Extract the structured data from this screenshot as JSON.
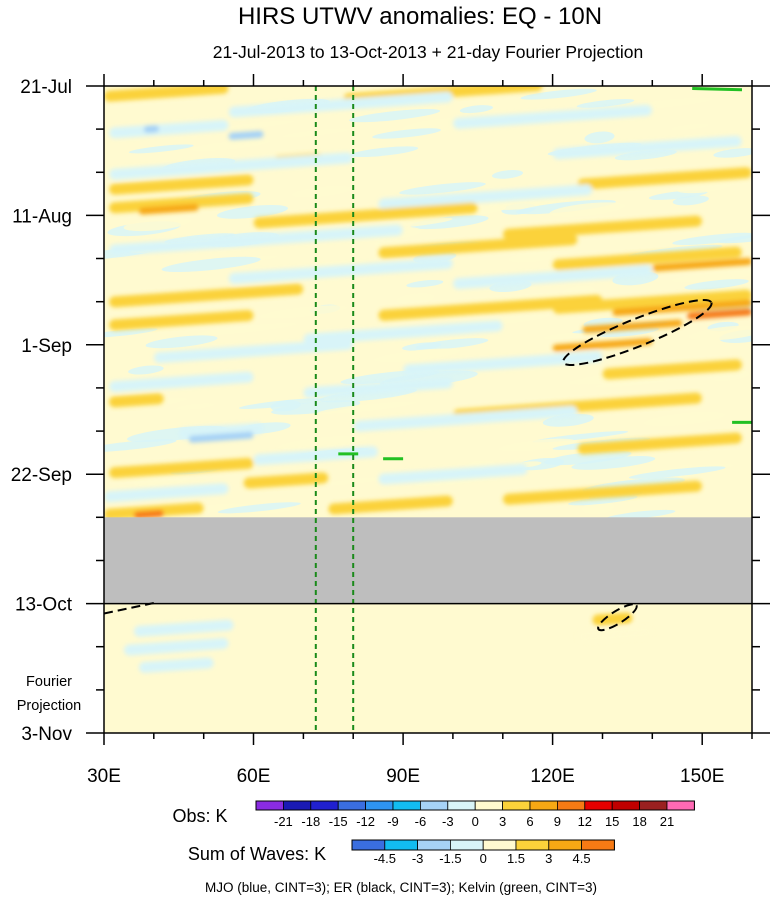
{
  "chart_data": {
    "type": "heatmap",
    "title": "HIRS UTWV anomalies: EQ - 10N",
    "subtitle": "21-Jul-2013 to 13-Oct-2013 + 21-day Fourier Projection",
    "x_axis": {
      "range": [
        30,
        160
      ],
      "units": "degrees East longitude",
      "ticks": [
        {
          "value": 30,
          "label": "30E"
        },
        {
          "value": 60,
          "label": "60E"
        },
        {
          "value": 90,
          "label": "90E"
        },
        {
          "value": 120,
          "label": "120E"
        },
        {
          "value": 150,
          "label": "150E"
        }
      ],
      "minor_step": 10
    },
    "y_axis": {
      "range_days": [
        0,
        105
      ],
      "direction": "time increases downward; day 0 = 21-Jul-2013",
      "ticks": [
        {
          "day": 0,
          "label": "21-Jul"
        },
        {
          "day": 21,
          "label": "11-Aug"
        },
        {
          "day": 42,
          "label": "1-Sep"
        },
        {
          "day": 63,
          "label": "22-Sep"
        },
        {
          "day": 84,
          "label": "13-Oct"
        },
        {
          "day": 105,
          "label": "3-Nov"
        }
      ],
      "minor_step_days": 7
    },
    "projection_label": [
      "Fourier",
      "Projection"
    ],
    "obs_end_day": 84,
    "missing_data_days": [
      70,
      84
    ],
    "missing_color": "#bebebe",
    "reference_lines": [
      {
        "lon": 72.5,
        "style": "dashed",
        "color": "#1a8a1a"
      },
      {
        "lon": 80,
        "style": "dashed",
        "color": "#1a8a1a"
      }
    ],
    "obs_legend": {
      "label": "Obs: K",
      "levels": [
        "-21",
        "-18",
        "-15",
        "-12",
        "-9",
        "-6",
        "-3",
        "0",
        "3",
        "6",
        "9",
        "12",
        "15",
        "18",
        "21"
      ],
      "colors": [
        "#8a2be2",
        "#1a1ab4",
        "#2020d0",
        "#3a6ee0",
        "#2e94f0",
        "#12bcf0",
        "#a6d2f6",
        "#d8f4f8",
        "#fffad0",
        "#fbd23a",
        "#f7a814",
        "#f77a14",
        "#e60000",
        "#c00000",
        "#9a2020",
        "#ff69b4"
      ]
    },
    "waves_legend": {
      "label": "Sum of Waves: K",
      "levels": [
        "-4.5",
        "-3",
        "-1.5",
        "0",
        "1.5",
        "3",
        "4.5"
      ],
      "colors": [
        "#3a6ee0",
        "#12bcf0",
        "#a6d2f6",
        "#d8f4f8",
        "#fffad0",
        "#fbd23a",
        "#f7a814",
        "#f77a14"
      ]
    },
    "footnote": "MJO (blue, CINT=3); ER (black, CINT=3); Kelvin (green, CINT=3)",
    "bands": [
      {
        "day": 1,
        "lon_from": 30,
        "lon_to": 55,
        "value": 3
      },
      {
        "day": 1,
        "lon_from": 78,
        "lon_to": 118,
        "value": 3
      },
      {
        "day": 3,
        "lon_from": 55,
        "lon_to": 100,
        "value": -3
      },
      {
        "day": 5,
        "lon_from": 100,
        "lon_to": 140,
        "value": -3
      },
      {
        "day": 7,
        "lon_from": 31,
        "lon_to": 55,
        "value": -3
      },
      {
        "day": 7,
        "lon_from": 38,
        "lon_to": 41,
        "value": -6
      },
      {
        "day": 8,
        "lon_from": 55,
        "lon_to": 62,
        "value": -6
      },
      {
        "day": 10,
        "lon_from": 120,
        "lon_to": 158,
        "value": -3
      },
      {
        "day": 12,
        "lon_from": 64,
        "lon_to": 74,
        "value": 3
      },
      {
        "day": 13,
        "lon_from": 31,
        "lon_to": 80,
        "value": -3
      },
      {
        "day": 15,
        "lon_from": 125,
        "lon_to": 160,
        "value": 3
      },
      {
        "day": 16,
        "lon_from": 31,
        "lon_to": 60,
        "value": 3
      },
      {
        "day": 18,
        "lon_from": 85,
        "lon_to": 128,
        "value": -3
      },
      {
        "day": 19,
        "lon_from": 31,
        "lon_to": 60,
        "value": 3
      },
      {
        "day": 20,
        "lon_from": 37,
        "lon_to": 49,
        "value": 6
      },
      {
        "day": 21,
        "lon_from": 60,
        "lon_to": 105,
        "value": 3
      },
      {
        "day": 23,
        "lon_from": 110,
        "lon_to": 150,
        "value": 3
      },
      {
        "day": 25,
        "lon_from": 31,
        "lon_to": 90,
        "value": -3
      },
      {
        "day": 26,
        "lon_from": 85,
        "lon_to": 125,
        "value": 3
      },
      {
        "day": 28,
        "lon_from": 120,
        "lon_to": 158,
        "value": 3
      },
      {
        "day": 29,
        "lon_from": 140,
        "lon_to": 160,
        "value": 6
      },
      {
        "day": 30,
        "lon_from": 55,
        "lon_to": 100,
        "value": -3
      },
      {
        "day": 31,
        "lon_from": 100,
        "lon_to": 140,
        "value": -3
      },
      {
        "day": 34,
        "lon_from": 31,
        "lon_to": 70,
        "value": 3
      },
      {
        "day": 35,
        "lon_from": 120,
        "lon_to": 160,
        "value": 3
      },
      {
        "day": 36,
        "lon_from": 85,
        "lon_to": 130,
        "value": 3
      },
      {
        "day": 36,
        "lon_from": 132,
        "lon_to": 160,
        "value": 6
      },
      {
        "day": 37,
        "lon_from": 147,
        "lon_to": 160,
        "value": 9
      },
      {
        "day": 38,
        "lon_from": 31,
        "lon_to": 60,
        "value": 3
      },
      {
        "day": 39,
        "lon_from": 126,
        "lon_to": 146,
        "value": 6
      },
      {
        "day": 40,
        "lon_from": 70,
        "lon_to": 110,
        "value": -3
      },
      {
        "day": 42,
        "lon_from": 120,
        "lon_to": 140,
        "value": 6
      },
      {
        "day": 43,
        "lon_from": 40,
        "lon_to": 80,
        "value": -3
      },
      {
        "day": 45,
        "lon_from": 90,
        "lon_to": 130,
        "value": -3
      },
      {
        "day": 46,
        "lon_from": 130,
        "lon_to": 158,
        "value": 3
      },
      {
        "day": 48,
        "lon_from": 31,
        "lon_to": 60,
        "value": -3
      },
      {
        "day": 49,
        "lon_from": 70,
        "lon_to": 100,
        "value": -3
      },
      {
        "day": 51,
        "lon_from": 31,
        "lon_to": 42,
        "value": 3
      },
      {
        "day": 52,
        "lon_from": 100,
        "lon_to": 150,
        "value": 3
      },
      {
        "day": 54,
        "lon_from": 80,
        "lon_to": 125,
        "value": -3
      },
      {
        "day": 56,
        "lon_from": 45,
        "lon_to": 62,
        "value": -3
      },
      {
        "day": 57,
        "lon_from": 47,
        "lon_to": 60,
        "value": -6
      },
      {
        "day": 58,
        "lon_from": 125,
        "lon_to": 158,
        "value": 3
      },
      {
        "day": 60,
        "lon_from": 60,
        "lon_to": 85,
        "value": -3
      },
      {
        "day": 62,
        "lon_from": 31,
        "lon_to": 60,
        "value": 3
      },
      {
        "day": 63,
        "lon_from": 85,
        "lon_to": 115,
        "value": -3
      },
      {
        "day": 64,
        "lon_from": 58,
        "lon_to": 75,
        "value": 3
      },
      {
        "day": 66,
        "lon_from": 30,
        "lon_to": 55,
        "value": -3
      },
      {
        "day": 66,
        "lon_from": 110,
        "lon_to": 150,
        "value": 3
      },
      {
        "day": 68,
        "lon_from": 75,
        "lon_to": 100,
        "value": 3
      },
      {
        "day": 69,
        "lon_from": 30,
        "lon_to": 50,
        "value": 3
      },
      {
        "day": 69.5,
        "lon_from": 36,
        "lon_to": 42,
        "value": 9
      },
      {
        "day": 88,
        "lon_from": 36,
        "lon_to": 56,
        "value": -1.5
      },
      {
        "day": 91,
        "lon_from": 34,
        "lon_to": 55,
        "value": -1.5
      },
      {
        "day": 94,
        "lon_from": 37,
        "lon_to": 52,
        "value": -1.5
      },
      {
        "day": 89,
        "lon_from": 125,
        "lon_to": 140,
        "value": 1.5
      },
      {
        "day": 86.5,
        "lon_from": 128,
        "lon_to": 136,
        "value": 3
      }
    ],
    "contours": [
      {
        "wave": "ER",
        "color": "black",
        "shape": "ellipse",
        "center": [
          137,
          40
        ],
        "radii": [
          16,
          2.2
        ],
        "angle_deg": -22
      },
      {
        "wave": "ER",
        "color": "black",
        "shape": "ellipse",
        "center": [
          133,
          86.2
        ],
        "radii": [
          4.5,
          1.0
        ],
        "angle_deg": -32
      },
      {
        "wave": "ER",
        "color": "black",
        "shape": "segment",
        "from": [
          30,
          85.6
        ],
        "to": [
          40,
          83.9
        ]
      },
      {
        "wave": "Kelvin",
        "color": "green",
        "shape": "segment",
        "from": [
          148,
          0.4
        ],
        "to": [
          158,
          0.6
        ]
      },
      {
        "wave": "Kelvin",
        "color": "green",
        "shape": "segment",
        "from": [
          77,
          59.7
        ],
        "to": [
          81,
          59.7
        ]
      },
      {
        "wave": "Kelvin",
        "color": "green",
        "shape": "segment",
        "from": [
          86,
          60.5
        ],
        "to": [
          90,
          60.5
        ]
      },
      {
        "wave": "Kelvin",
        "color": "green",
        "shape": "segment",
        "from": [
          156,
          54.6
        ],
        "to": [
          160,
          54.6
        ]
      }
    ]
  }
}
